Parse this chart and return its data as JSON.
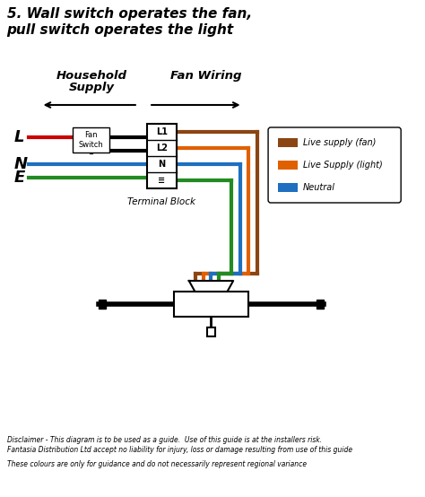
{
  "title_line1": "5. Wall switch operates the fan,",
  "title_line2": "pull switch operates the light",
  "header_household": "Household",
  "header_supply": "Supply",
  "header_fan_wiring": "Fan Wiring",
  "label_L": "L",
  "label_N": "N",
  "label_E": "E",
  "terminal_labels": [
    "L1",
    "L2",
    "N",
    "≡"
  ],
  "terminal_block_label": "Terminal Block",
  "fan_switch_label": "Fan\nSwitch",
  "legend_items": [
    {
      "label": "Live supply (fan)",
      "color": "#8B4513"
    },
    {
      "label": "Live Supply (light)",
      "color": "#E06000"
    },
    {
      "label": "Neutral",
      "color": "#1E6FBF"
    }
  ],
  "wire_colors": {
    "live_red": "#CC0000",
    "black": "#000000",
    "blue": "#1E6FBF",
    "green": "#228B22",
    "brown": "#8B4513",
    "orange": "#E06000"
  },
  "disclaimer1": "Disclaimer - This diagram is to be used as a guide.  Use of this guide is at the installers risk.",
  "disclaimer2": "Fantasia Distribution Ltd accept no liability for injury, loss or damage resulting from use of this guide",
  "disclaimer3": "These colours are only for guidance and do not necessarily represent regional variance",
  "bg_color": "#FFFFFF"
}
